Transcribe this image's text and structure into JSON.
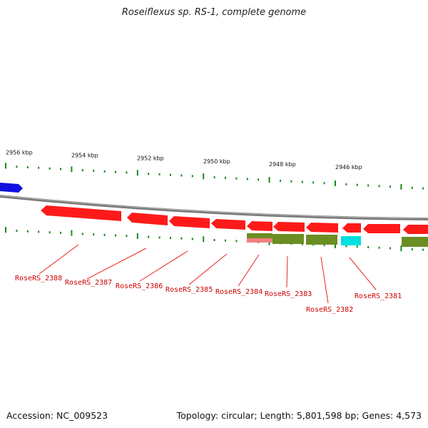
{
  "title": "Roseiflexus sp. RS-1, complete genome",
  "footer": {
    "accession": "Accession: NC_009523",
    "summary": "Topology: circular; Length: 5,801,598 bp; Genes: 4,573"
  },
  "scale": {
    "labels": [
      "2956 kbp",
      "2954 kbp",
      "2952 kbp",
      "2950 kbp",
      "2948 kbp",
      "2946 kbp"
    ]
  },
  "genes": [
    "RoseRS_2388",
    "RoseRS_2387",
    "RoseRS_2386",
    "RoseRS_2385",
    "RoseRS_2384",
    "RoseRS_2383",
    "RoseRS_2382",
    "RoseRS_2381"
  ],
  "colors": {
    "forward_feature": "#1010e0",
    "reverse_cds": "#ff0000",
    "olive_feature": "#6b8e23",
    "pink_feature": "#f08080",
    "cyan_feature": "#00e0e0",
    "label_red": "#cc0000",
    "tick_green": "#1a8a1a",
    "backbone": "#888888"
  }
}
